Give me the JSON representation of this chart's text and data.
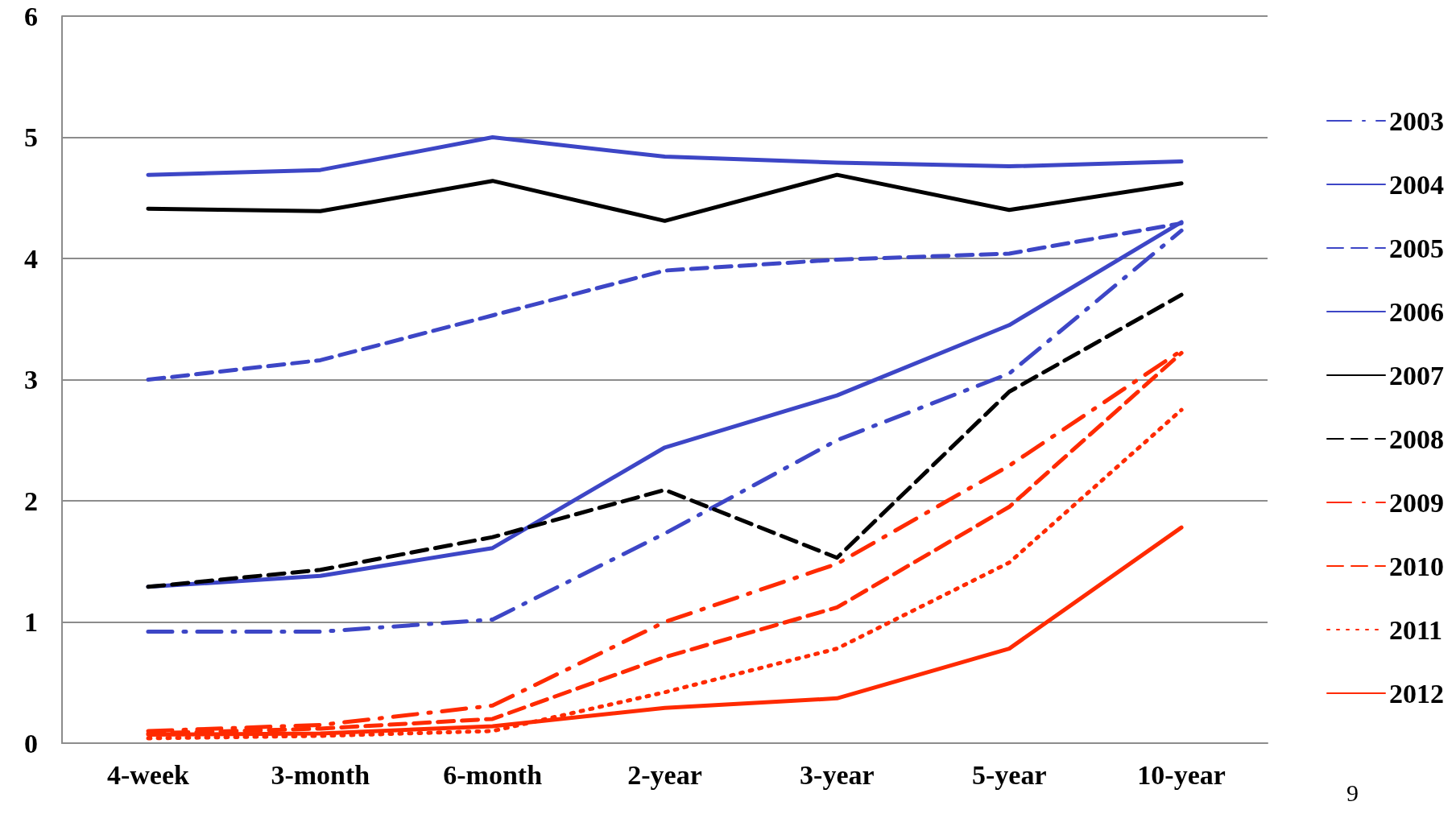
{
  "chart_data": {
    "type": "line",
    "categories": [
      "4-week",
      "3-month",
      "6-month",
      "2-year",
      "3-year",
      "5-year",
      "10-year"
    ],
    "series": [
      {
        "name": "2003",
        "color": "#3d46c6",
        "line_style": "dashdot",
        "values": [
          0.92,
          0.92,
          1.02,
          1.73,
          2.5,
          3.05,
          4.23
        ]
      },
      {
        "name": "2004",
        "color": "#3d46c6",
        "line_style": "solid",
        "values": [
          1.29,
          1.38,
          1.61,
          2.44,
          2.87,
          3.45,
          4.3
        ]
      },
      {
        "name": "2005",
        "color": "#3d46c6",
        "line_style": "dashed",
        "values": [
          3.0,
          3.16,
          3.53,
          3.9,
          3.99,
          4.04,
          4.29
        ]
      },
      {
        "name": "2006",
        "color": "#3d46c6",
        "line_style": "solid",
        "values": [
          4.69,
          4.73,
          5.0,
          4.84,
          4.79,
          4.76,
          4.8
        ]
      },
      {
        "name": "2007",
        "color": "#000000",
        "line_style": "solid",
        "values": [
          4.41,
          4.39,
          4.64,
          4.31,
          4.69,
          4.4,
          4.62
        ]
      },
      {
        "name": "2008",
        "color": "#000000",
        "line_style": "dashed",
        "values": [
          1.29,
          1.43,
          1.7,
          2.09,
          1.53,
          2.9,
          3.7
        ]
      },
      {
        "name": "2009",
        "color": "#ff2a00",
        "line_style": "dashdot",
        "values": [
          0.1,
          0.15,
          0.31,
          1.0,
          1.48,
          2.29,
          3.24
        ]
      },
      {
        "name": "2010",
        "color": "#ff2a00",
        "line_style": "dashed",
        "values": [
          0.08,
          0.12,
          0.2,
          0.71,
          1.12,
          1.95,
          3.22
        ]
      },
      {
        "name": "2011",
        "color": "#ff2a00",
        "line_style": "dotted",
        "values": [
          0.04,
          0.06,
          0.1,
          0.42,
          0.78,
          1.49,
          2.75
        ]
      },
      {
        "name": "2012",
        "color": "#ff2a00",
        "line_style": "solid",
        "values": [
          0.07,
          0.08,
          0.14,
          0.29,
          0.37,
          0.78,
          1.78
        ]
      }
    ],
    "ylim": [
      0,
      6
    ],
    "yticks": [
      0,
      1,
      2,
      3,
      4,
      5,
      6
    ],
    "grid": "y",
    "legend": "right",
    "marker": "none",
    "annotations": [
      "9"
    ]
  }
}
